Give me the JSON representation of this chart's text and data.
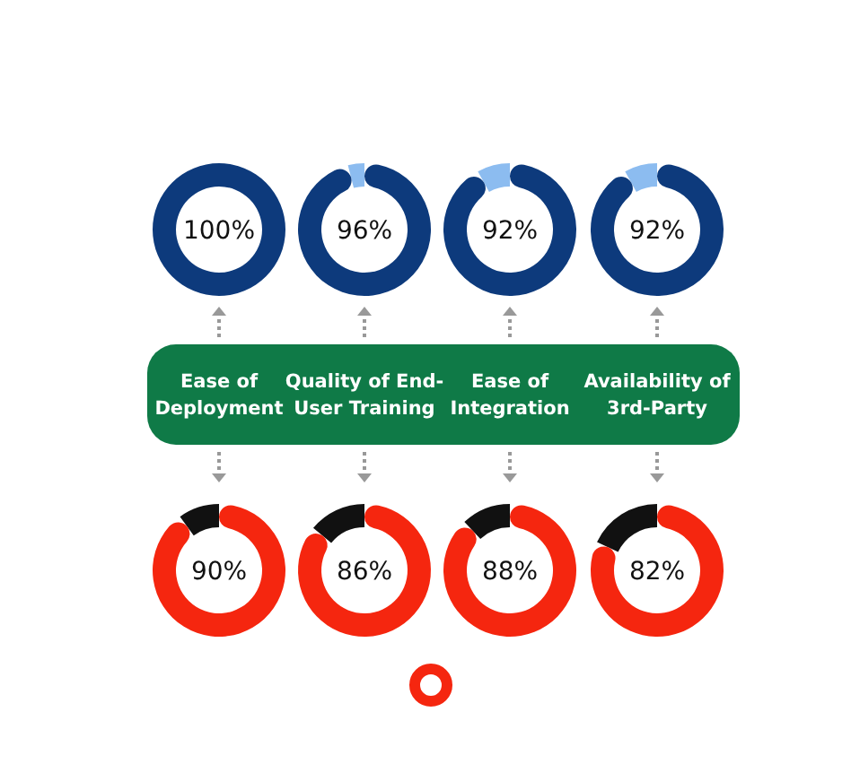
{
  "chart_data": [
    {
      "type": "donut",
      "categories": [
        null
      ],
      "values": [
        100
      ],
      "colors": [
        "#0d3a7c"
      ],
      "annotations": [
        "100%"
      ]
    },
    {
      "type": "donut",
      "categories": [
        null,
        null
      ],
      "values": [
        96,
        4
      ],
      "colors": [
        "#0d3a7c",
        "#8cbcf0"
      ],
      "annotations": [
        "96%"
      ]
    },
    {
      "type": "donut",
      "categories": [
        null,
        null
      ],
      "values": [
        92,
        8
      ],
      "colors": [
        "#0d3a7c",
        "#8cbcf0"
      ],
      "annotations": [
        "92%"
      ]
    },
    {
      "type": "donut",
      "categories": [
        null,
        null
      ],
      "values": [
        92,
        8
      ],
      "colors": [
        "#0d3a7c",
        "#8cbcf0"
      ],
      "annotations": [
        "92%"
      ]
    },
    {
      "type": "other",
      "annotations": [
        "Ease of Deployment",
        "Quality of End-User Training",
        "Ease of Integration",
        "Availability of 3rd-Party"
      ]
    },
    {
      "type": "donut",
      "categories": [
        null,
        null
      ],
      "values": [
        90,
        10
      ],
      "colors": [
        "#f5260f",
        "#111111"
      ],
      "annotations": [
        "90%"
      ]
    },
    {
      "type": "donut",
      "categories": [
        null,
        null
      ],
      "values": [
        86,
        14
      ],
      "colors": [
        "#f5260f",
        "#111111"
      ],
      "annotations": [
        "86%"
      ]
    },
    {
      "type": "donut",
      "categories": [
        null,
        null
      ],
      "values": [
        88,
        12
      ],
      "colors": [
        "#f5260f",
        "#111111"
      ],
      "annotations": [
        "88%"
      ]
    },
    {
      "type": "donut",
      "categories": [
        null,
        null
      ],
      "values": [
        82,
        18
      ],
      "colors": [
        "#f5260f",
        "#111111"
      ],
      "annotations": [
        "82%"
      ]
    }
  ]
}
